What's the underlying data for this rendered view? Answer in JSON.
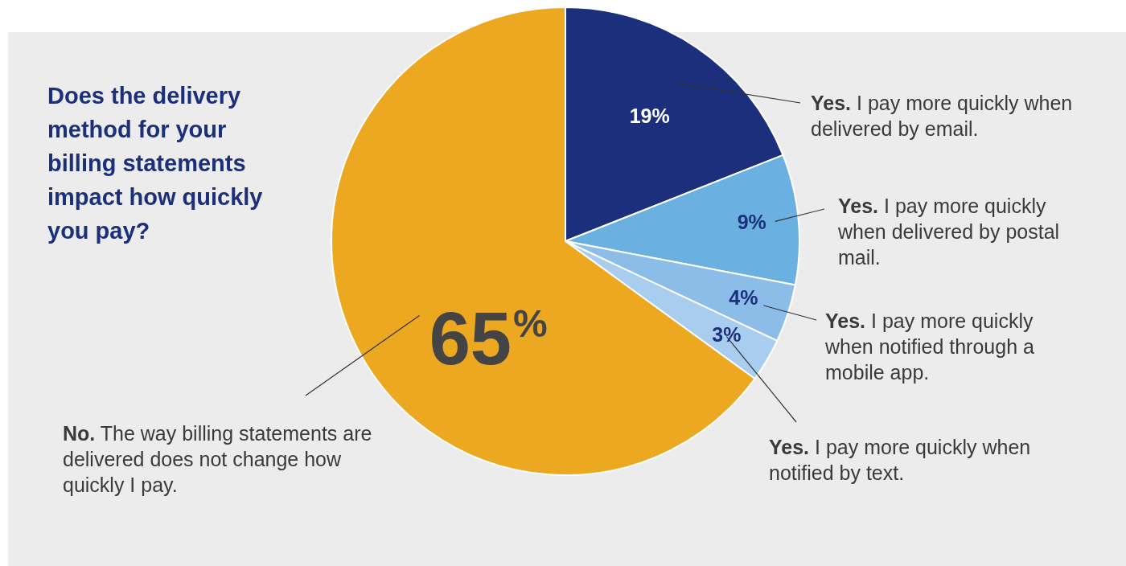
{
  "chart_data": {
    "type": "pie",
    "title": "Does the delivery method for your billing statements impact how quickly you pay?",
    "categories": [
      "Yes. I pay more quickly when delivered by email.",
      "Yes. I pay more quickly when delivered by postal mail.",
      "Yes. I pay more quickly when notified through a mobile app.",
      "Yes. I pay more quickly when notified by text.",
      "No. The way billing statements are delivered does not change how quickly I pay."
    ],
    "values": [
      19,
      9,
      4,
      3,
      65
    ],
    "colors": [
      "#1b2f7d",
      "#6ab0e0",
      "#8bbde8",
      "#a9cdee",
      "#eba820"
    ],
    "value_labels": [
      "19%",
      "9%",
      "4%",
      "3%",
      "65%"
    ],
    "legend": false
  }
}
